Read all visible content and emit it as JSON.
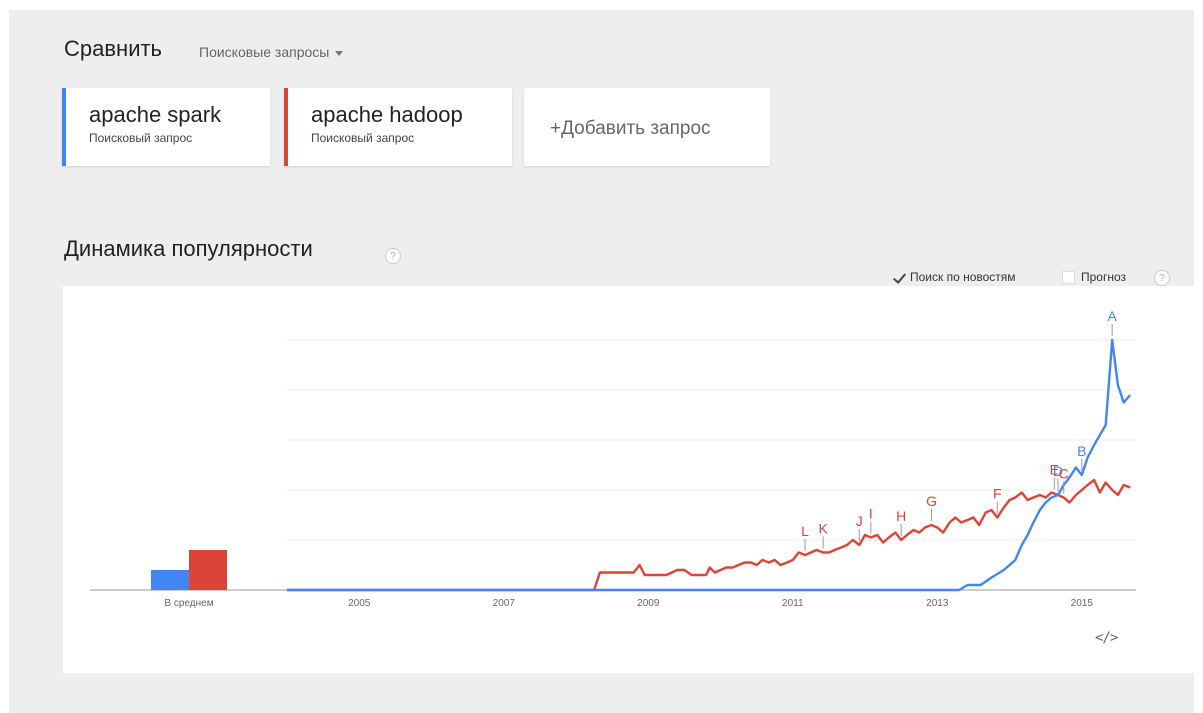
{
  "compare": {
    "title": "Сравнить",
    "type_label": "Поисковые запросы"
  },
  "terms": [
    {
      "name": "apache spark",
      "kind": "Поисковый запрос",
      "color": "#4285f4"
    },
    {
      "name": "apache hadoop",
      "kind": "Поисковый запрос",
      "color": "#db4437"
    }
  ],
  "add_term_label": "+Добавить запрос",
  "section": {
    "title": "Динамика популярности",
    "help": "?",
    "news_label": "Поиск по новостям",
    "news_checked": true,
    "forecast_label": "Прогноз",
    "forecast_checked": false
  },
  "embed_icon": "code-embed-icon",
  "colors": {
    "spark": "#4285f4",
    "hadoop": "#db4437",
    "gridline": "#eeeeee"
  },
  "chart_data": {
    "type": "line",
    "x_ticks": [
      "2005",
      "2007",
      "2009",
      "2011",
      "2013",
      "2015"
    ],
    "x_range": [
      2004.0,
      2015.75
    ],
    "y_range": [
      0,
      100
    ],
    "grid": true,
    "average_label": "В среднем",
    "averages": [
      {
        "term": "apache spark",
        "value": 8
      },
      {
        "term": "apache hadoop",
        "value": 16
      }
    ],
    "series": [
      {
        "name": "apache spark",
        "color": "#4285f4",
        "points": [
          [
            2004.0,
            0
          ],
          [
            2013.3,
            0
          ],
          [
            2013.42,
            2
          ],
          [
            2013.6,
            2
          ],
          [
            2013.75,
            5
          ],
          [
            2013.92,
            8
          ],
          [
            2014.08,
            12
          ],
          [
            2014.17,
            18
          ],
          [
            2014.25,
            22
          ],
          [
            2014.33,
            27
          ],
          [
            2014.42,
            32
          ],
          [
            2014.5,
            35
          ],
          [
            2014.58,
            37
          ],
          [
            2014.67,
            38
          ],
          [
            2014.75,
            42
          ],
          [
            2014.83,
            45
          ],
          [
            2014.92,
            49
          ],
          [
            2015.0,
            46
          ],
          [
            2015.08,
            53
          ],
          [
            2015.17,
            58
          ],
          [
            2015.25,
            62
          ],
          [
            2015.33,
            66
          ],
          [
            2015.42,
            100
          ],
          [
            2015.5,
            82
          ],
          [
            2015.58,
            75
          ],
          [
            2015.67,
            78
          ]
        ]
      },
      {
        "name": "apache hadoop",
        "color": "#db4437",
        "points": [
          [
            2004.0,
            0
          ],
          [
            2008.25,
            0
          ],
          [
            2008.33,
            7
          ],
          [
            2008.5,
            7
          ],
          [
            2008.67,
            7
          ],
          [
            2008.8,
            7
          ],
          [
            2008.88,
            10
          ],
          [
            2008.95,
            6
          ],
          [
            2009.1,
            6
          ],
          [
            2009.25,
            6
          ],
          [
            2009.4,
            8
          ],
          [
            2009.5,
            8
          ],
          [
            2009.6,
            6
          ],
          [
            2009.7,
            6
          ],
          [
            2009.8,
            6
          ],
          [
            2009.85,
            9
          ],
          [
            2009.92,
            7
          ],
          [
            2010.0,
            8
          ],
          [
            2010.08,
            9
          ],
          [
            2010.17,
            9
          ],
          [
            2010.25,
            10
          ],
          [
            2010.33,
            11
          ],
          [
            2010.42,
            11
          ],
          [
            2010.5,
            10
          ],
          [
            2010.58,
            12
          ],
          [
            2010.67,
            11
          ],
          [
            2010.75,
            12
          ],
          [
            2010.83,
            10
          ],
          [
            2010.92,
            11
          ],
          [
            2011.0,
            12
          ],
          [
            2011.08,
            15
          ],
          [
            2011.17,
            14
          ],
          [
            2011.25,
            15
          ],
          [
            2011.33,
            16
          ],
          [
            2011.42,
            15
          ],
          [
            2011.5,
            15
          ],
          [
            2011.58,
            16
          ],
          [
            2011.67,
            17
          ],
          [
            2011.75,
            18
          ],
          [
            2011.83,
            20
          ],
          [
            2011.92,
            18
          ],
          [
            2012.0,
            22
          ],
          [
            2012.08,
            21
          ],
          [
            2012.17,
            22
          ],
          [
            2012.25,
            19
          ],
          [
            2012.33,
            21
          ],
          [
            2012.42,
            23
          ],
          [
            2012.5,
            20
          ],
          [
            2012.58,
            22
          ],
          [
            2012.67,
            24
          ],
          [
            2012.75,
            23
          ],
          [
            2012.83,
            25
          ],
          [
            2012.92,
            26
          ],
          [
            2013.0,
            25
          ],
          [
            2013.08,
            23
          ],
          [
            2013.17,
            27
          ],
          [
            2013.25,
            29
          ],
          [
            2013.33,
            27
          ],
          [
            2013.42,
            28
          ],
          [
            2013.5,
            29
          ],
          [
            2013.58,
            26
          ],
          [
            2013.67,
            31
          ],
          [
            2013.75,
            32
          ],
          [
            2013.83,
            29
          ],
          [
            2013.92,
            33
          ],
          [
            2014.0,
            36
          ],
          [
            2014.08,
            37
          ],
          [
            2014.17,
            39
          ],
          [
            2014.25,
            36
          ],
          [
            2014.33,
            37
          ],
          [
            2014.42,
            38
          ],
          [
            2014.5,
            37
          ],
          [
            2014.58,
            39
          ],
          [
            2014.67,
            38
          ],
          [
            2014.75,
            37
          ],
          [
            2014.83,
            35
          ],
          [
            2014.92,
            38
          ],
          [
            2015.0,
            40
          ],
          [
            2015.08,
            42
          ],
          [
            2015.17,
            44
          ],
          [
            2015.25,
            39
          ],
          [
            2015.33,
            43
          ],
          [
            2015.42,
            40
          ],
          [
            2015.5,
            38
          ],
          [
            2015.58,
            42
          ],
          [
            2015.67,
            41
          ]
        ]
      }
    ],
    "annotations": [
      {
        "label": "A",
        "series": "apache spark",
        "x": 2015.42
      },
      {
        "label": "B",
        "series": "apache spark",
        "x": 2015.0
      },
      {
        "label": "D",
        "series": "apache spark",
        "x": 2014.67
      },
      {
        "label": "E",
        "series": "apache hadoop",
        "x": 2014.62
      },
      {
        "label": "C",
        "series": "apache hadoop",
        "x": 2014.75
      },
      {
        "label": "F",
        "series": "apache hadoop",
        "x": 2013.83
      },
      {
        "label": "G",
        "series": "apache hadoop",
        "x": 2012.92
      },
      {
        "label": "H",
        "series": "apache hadoop",
        "x": 2012.5
      },
      {
        "label": "I",
        "series": "apache hadoop",
        "x": 2012.08
      },
      {
        "label": "J",
        "series": "apache hadoop",
        "x": 2011.92
      },
      {
        "label": "K",
        "series": "apache hadoop",
        "x": 2011.42
      },
      {
        "label": "L",
        "series": "apache hadoop",
        "x": 2011.17
      }
    ]
  }
}
